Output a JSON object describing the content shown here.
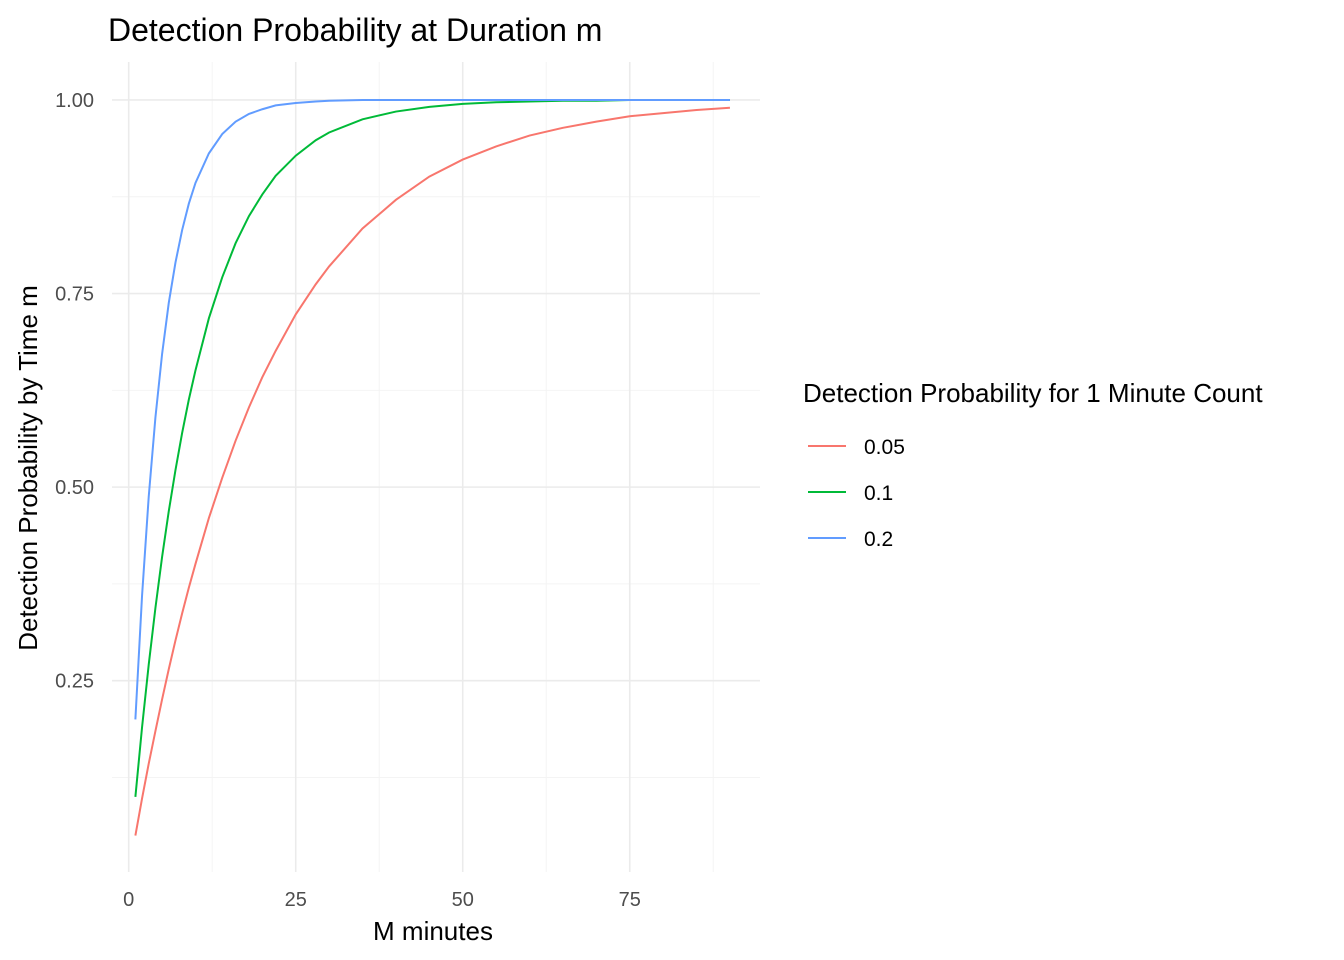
{
  "chart_data": {
    "type": "line",
    "title": "Detection Probability at Duration m",
    "xlabel": "M minutes",
    "ylabel": "Detection Probability by Time m",
    "xlim": [
      -2.5,
      94.5
    ],
    "ylim": [
      0.003,
      1.049
    ],
    "x_ticks": [
      0,
      25,
      50,
      75
    ],
    "x_tick_labels": [
      "0",
      "25",
      "50",
      "75"
    ],
    "y_ticks": [
      0.25,
      0.5,
      0.75,
      1.0
    ],
    "y_tick_labels": [
      "0.25",
      "0.50",
      "0.75",
      "1.00"
    ],
    "grid": true,
    "legend": {
      "title": "Detection Probability for 1 Minute Count",
      "position": "right"
    },
    "x": [
      1,
      2,
      3,
      4,
      5,
      6,
      7,
      8,
      9,
      10,
      12,
      14,
      16,
      18,
      20,
      22,
      25,
      28,
      30,
      35,
      40,
      45,
      50,
      55,
      60,
      65,
      70,
      75,
      80,
      85,
      90
    ],
    "series": [
      {
        "name": "0.05",
        "color": "#F8766D",
        "values": [
          0.05,
          0.098,
          0.143,
          0.185,
          0.226,
          0.265,
          0.302,
          0.337,
          0.37,
          0.401,
          0.46,
          0.512,
          0.56,
          0.603,
          0.642,
          0.676,
          0.723,
          0.762,
          0.785,
          0.834,
          0.871,
          0.901,
          0.923,
          0.94,
          0.954,
          0.964,
          0.972,
          0.979,
          0.983,
          0.987,
          0.99
        ]
      },
      {
        "name": "0.1",
        "color": "#00BA38",
        "values": [
          0.1,
          0.19,
          0.271,
          0.344,
          0.41,
          0.469,
          0.522,
          0.57,
          0.613,
          0.651,
          0.718,
          0.771,
          0.815,
          0.85,
          0.878,
          0.902,
          0.928,
          0.948,
          0.958,
          0.975,
          0.985,
          0.991,
          0.995,
          0.997,
          0.998,
          0.999,
          0.999,
          1.0,
          1.0,
          1.0,
          1.0
        ]
      },
      {
        "name": "0.2",
        "color": "#619CFF",
        "values": [
          0.2,
          0.36,
          0.488,
          0.59,
          0.672,
          0.738,
          0.79,
          0.832,
          0.866,
          0.893,
          0.931,
          0.956,
          0.972,
          0.982,
          0.988,
          0.993,
          0.996,
          0.998,
          0.999,
          1.0,
          1.0,
          1.0,
          1.0,
          1.0,
          1.0,
          1.0,
          1.0,
          1.0,
          1.0,
          1.0,
          1.0
        ]
      }
    ]
  }
}
